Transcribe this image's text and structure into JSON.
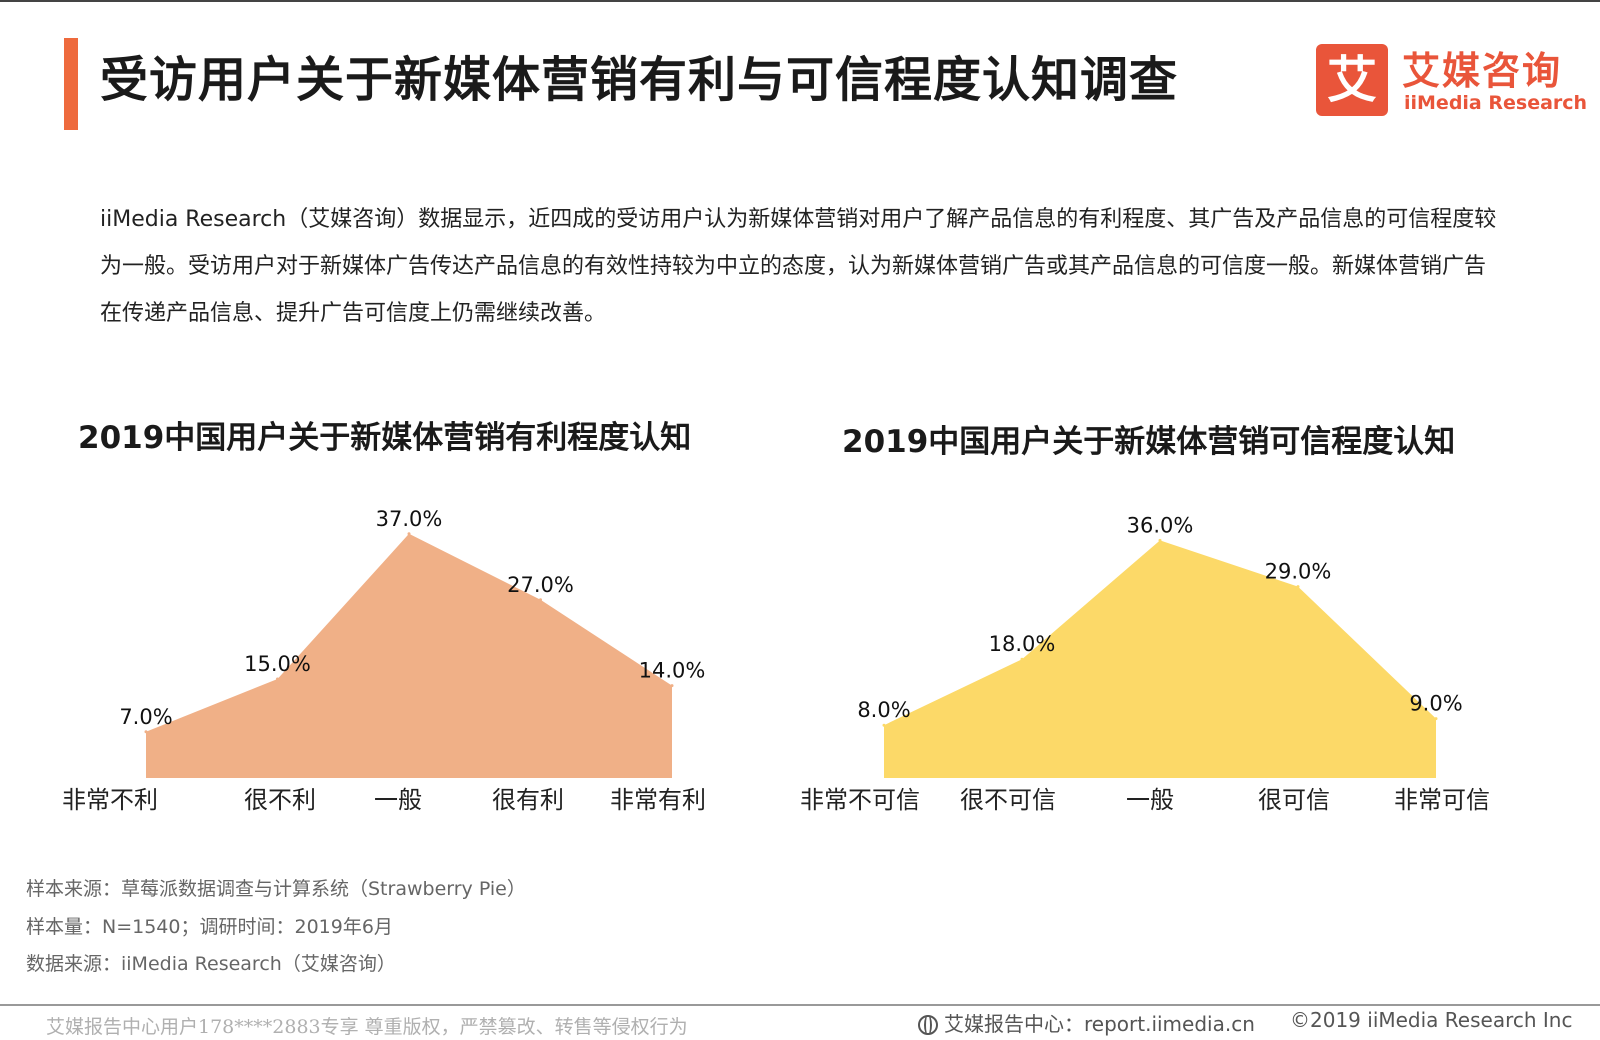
{
  "header": {
    "title": "受访用户关于新媒体营销有利与可信程度认知调查",
    "accent_color": "#ee6a3d"
  },
  "logo": {
    "mark": "艾",
    "cn": "艾媒咨询",
    "en": "iiMedia Research",
    "color": "#e9553a"
  },
  "summary": "iiMedia Research（艾媒咨询）数据显示，近四成的受访用户认为新媒体营销对用户了解产品信息的有利程度、其广告及产品信息的可信程度较为一般。受访用户对于新媒体广告传达产品信息的有效性持较为中立的态度，认为新媒体营销广告或其产品信息的可信度一般。新媒体营销广告在传递产品信息、提升广告可信度上仍需继续改善。",
  "chart_data": [
    {
      "type": "area",
      "title": "2019中国用户关于新媒体营销有利程度认知",
      "categories": [
        "非常不利",
        "很不利",
        "一般",
        "很有利",
        "非常有利"
      ],
      "values": [
        7.0,
        15.0,
        37.0,
        27.0,
        14.0
      ],
      "value_labels": [
        "7.0%",
        "15.0%",
        "37.0%",
        "27.0%",
        "14.0%"
      ],
      "unit": "%",
      "color": "#f0b087",
      "ylim": [
        0,
        40
      ],
      "grid": false,
      "legend": "none"
    },
    {
      "type": "area",
      "title": "2019中国用户关于新媒体营销可信程度认知",
      "categories": [
        "非常不可信",
        "很不可信",
        "一般",
        "很可信",
        "非常可信"
      ],
      "values": [
        8.0,
        18.0,
        36.0,
        29.0,
        9.0
      ],
      "value_labels": [
        "8.0%",
        "18.0%",
        "36.0%",
        "29.0%",
        "9.0%"
      ],
      "unit": "%",
      "color": "#fcd968",
      "ylim": [
        0,
        40
      ],
      "grid": false,
      "legend": "none"
    }
  ],
  "footer": {
    "source": "样本来源：草莓派数据调查与计算系统（Strawberry Pie）",
    "sample": "样本量：N=1540；调研时间：2019年6月",
    "data_source": "数据来源：iiMedia Research（艾媒咨询）",
    "watermark": "艾媒报告中心用户178****2883专享 尊重版权，严禁篡改、转售等侵权行为",
    "report_center": "艾媒报告中心：report.iimedia.cn",
    "copyright": "©2019  iiMedia Research  Inc",
    "globe_icon": "globe-icon"
  }
}
